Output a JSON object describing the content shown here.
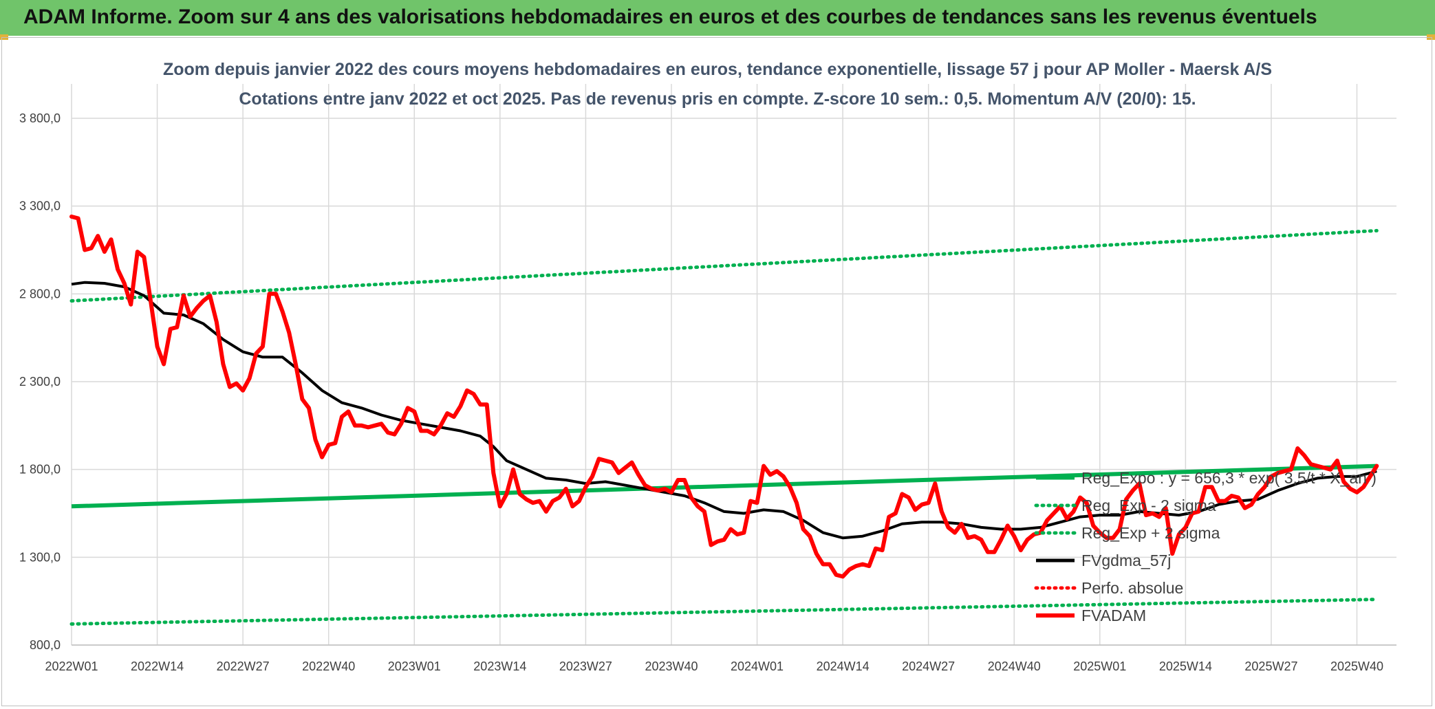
{
  "header": {
    "title": "ADAM Informe. Zoom sur 4 ans des valorisations hebdomadaires en euros et des courbes de tendances sans les revenus éventuels",
    "background": "#70c46a"
  },
  "chart_data": {
    "type": "line",
    "title": "Zoom depuis janvier 2022 des cours moyens hebdomadaires en euros, tendance exponentielle, lissage 57 j pour AP Moller - Maersk A/S",
    "subtitle": "Cotations entre janv 2022 et oct 2025. Pas de revenus pris en compte. Z-score 10 sem.: 0,5. Momentum A/V (20/0): 15.",
    "xlabel": "",
    "ylabel": "",
    "x_tick_labels": [
      "2022W01",
      "2022W14",
      "2022W27",
      "2022W40",
      "2023W01",
      "2023W14",
      "2023W27",
      "2023W40",
      "2024W01",
      "2024W14",
      "2024W27",
      "2024W40",
      "2025W01",
      "2025W14",
      "2025W27",
      "2025W40"
    ],
    "y_tick_labels": [
      "800,0",
      "1 300,0",
      "1 800,0",
      "2 300,0",
      "2 800,0",
      "3 300,0",
      "3 800,0"
    ],
    "ylim": [
      800,
      3800
    ],
    "x_range_weeks": [
      0,
      201
    ],
    "grid": true,
    "legend_position": "right",
    "legend": [
      {
        "name": "Reg_Expo : y = 656,3 * exp( 3,5/t * X_an )",
        "style": "solid",
        "color": "#00b050"
      },
      {
        "name": "Reg_Exp - 2 sigma",
        "style": "dotted",
        "color": "#00b050"
      },
      {
        "name": "Reg_Exp + 2 sigma",
        "style": "dotted",
        "color": "#00b050"
      },
      {
        "name": "FVgdma_57j",
        "style": "solid",
        "color": "#000000"
      },
      {
        "name": "Perfo. absolue",
        "style": "dotted",
        "color": "#ff0000"
      },
      {
        "name": "FVADAM",
        "style": "solid",
        "color": "#ff0000"
      }
    ],
    "series": [
      {
        "name": "FVADAM",
        "color": "#ff0000",
        "points": [
          [
            0,
            3240
          ],
          [
            1,
            3230
          ],
          [
            2,
            3050
          ],
          [
            3,
            3060
          ],
          [
            4,
            3130
          ],
          [
            5,
            3040
          ],
          [
            6,
            3110
          ],
          [
            7,
            2940
          ],
          [
            8,
            2860
          ],
          [
            9,
            2740
          ],
          [
            10,
            3040
          ],
          [
            11,
            3010
          ],
          [
            12,
            2760
          ],
          [
            13,
            2500
          ],
          [
            14,
            2400
          ],
          [
            15,
            2600
          ],
          [
            16,
            2610
          ],
          [
            17,
            2790
          ],
          [
            18,
            2670
          ],
          [
            19,
            2720
          ],
          [
            20,
            2760
          ],
          [
            21,
            2790
          ],
          [
            22,
            2640
          ],
          [
            23,
            2400
          ],
          [
            24,
            2270
          ],
          [
            25,
            2290
          ],
          [
            26,
            2250
          ],
          [
            27,
            2320
          ],
          [
            28,
            2460
          ],
          [
            29,
            2500
          ],
          [
            30,
            2800
          ],
          [
            31,
            2800
          ],
          [
            32,
            2700
          ],
          [
            33,
            2580
          ],
          [
            34,
            2400
          ],
          [
            35,
            2200
          ],
          [
            36,
            2150
          ],
          [
            37,
            1970
          ],
          [
            38,
            1870
          ],
          [
            39,
            1940
          ],
          [
            40,
            1950
          ],
          [
            41,
            2100
          ],
          [
            42,
            2130
          ],
          [
            43,
            2050
          ],
          [
            44,
            2050
          ],
          [
            45,
            2040
          ],
          [
            46,
            2050
          ],
          [
            47,
            2060
          ],
          [
            48,
            2010
          ],
          [
            49,
            2000
          ],
          [
            50,
            2060
          ],
          [
            51,
            2150
          ],
          [
            52,
            2130
          ],
          [
            53,
            2020
          ],
          [
            54,
            2020
          ],
          [
            55,
            2000
          ],
          [
            56,
            2050
          ],
          [
            57,
            2120
          ],
          [
            58,
            2100
          ],
          [
            59,
            2160
          ],
          [
            60,
            2250
          ],
          [
            61,
            2230
          ],
          [
            62,
            2170
          ],
          [
            63,
            2170
          ],
          [
            64,
            1780
          ],
          [
            65,
            1590
          ],
          [
            66,
            1660
          ],
          [
            67,
            1800
          ],
          [
            68,
            1660
          ],
          [
            69,
            1630
          ],
          [
            70,
            1610
          ],
          [
            71,
            1620
          ],
          [
            72,
            1560
          ],
          [
            73,
            1620
          ],
          [
            74,
            1640
          ],
          [
            75,
            1690
          ],
          [
            76,
            1590
          ],
          [
            77,
            1620
          ],
          [
            78,
            1700
          ],
          [
            79,
            1760
          ],
          [
            80,
            1860
          ],
          [
            81,
            1850
          ],
          [
            82,
            1840
          ],
          [
            83,
            1780
          ],
          [
            84,
            1810
          ],
          [
            85,
            1840
          ],
          [
            86,
            1770
          ],
          [
            87,
            1710
          ],
          [
            88,
            1690
          ],
          [
            89,
            1680
          ],
          [
            90,
            1690
          ],
          [
            91,
            1670
          ],
          [
            92,
            1740
          ],
          [
            93,
            1740
          ],
          [
            94,
            1640
          ],
          [
            95,
            1590
          ],
          [
            96,
            1560
          ],
          [
            97,
            1370
          ],
          [
            98,
            1390
          ],
          [
            99,
            1400
          ],
          [
            100,
            1460
          ],
          [
            101,
            1430
          ],
          [
            102,
            1440
          ],
          [
            103,
            1620
          ],
          [
            104,
            1610
          ],
          [
            105,
            1820
          ],
          [
            106,
            1770
          ],
          [
            107,
            1790
          ],
          [
            108,
            1760
          ],
          [
            109,
            1700
          ],
          [
            110,
            1610
          ],
          [
            111,
            1460
          ],
          [
            112,
            1420
          ],
          [
            113,
            1320
          ],
          [
            114,
            1260
          ],
          [
            115,
            1260
          ],
          [
            116,
            1200
          ],
          [
            117,
            1190
          ],
          [
            118,
            1230
          ],
          [
            119,
            1250
          ],
          [
            120,
            1260
          ],
          [
            121,
            1250
          ],
          [
            122,
            1350
          ],
          [
            123,
            1340
          ],
          [
            124,
            1530
          ],
          [
            125,
            1550
          ],
          [
            126,
            1660
          ],
          [
            127,
            1640
          ],
          [
            128,
            1570
          ],
          [
            129,
            1600
          ],
          [
            130,
            1610
          ],
          [
            131,
            1720
          ],
          [
            132,
            1560
          ],
          [
            133,
            1470
          ],
          [
            134,
            1440
          ],
          [
            135,
            1490
          ],
          [
            136,
            1410
          ],
          [
            137,
            1420
          ],
          [
            138,
            1400
          ],
          [
            139,
            1330
          ],
          [
            140,
            1330
          ],
          [
            141,
            1400
          ],
          [
            142,
            1480
          ],
          [
            143,
            1420
          ],
          [
            144,
            1340
          ],
          [
            145,
            1400
          ],
          [
            146,
            1430
          ],
          [
            147,
            1440
          ],
          [
            148,
            1510
          ],
          [
            149,
            1550
          ],
          [
            150,
            1590
          ],
          [
            151,
            1520
          ],
          [
            152,
            1560
          ],
          [
            153,
            1640
          ],
          [
            154,
            1610
          ],
          [
            155,
            1480
          ],
          [
            156,
            1440
          ],
          [
            157,
            1410
          ],
          [
            158,
            1410
          ],
          [
            159,
            1460
          ],
          [
            160,
            1630
          ],
          [
            161,
            1680
          ],
          [
            162,
            1720
          ],
          [
            163,
            1540
          ],
          [
            164,
            1550
          ],
          [
            165,
            1530
          ],
          [
            166,
            1580
          ],
          [
            167,
            1320
          ],
          [
            168,
            1430
          ],
          [
            169,
            1470
          ],
          [
            170,
            1550
          ],
          [
            171,
            1560
          ],
          [
            172,
            1700
          ],
          [
            173,
            1700
          ],
          [
            174,
            1620
          ],
          [
            175,
            1620
          ],
          [
            176,
            1650
          ],
          [
            177,
            1640
          ],
          [
            178,
            1580
          ],
          [
            179,
            1600
          ],
          [
            180,
            1660
          ],
          [
            181,
            1700
          ],
          [
            182,
            1760
          ],
          [
            183,
            1780
          ],
          [
            184,
            1790
          ],
          [
            185,
            1800
          ],
          [
            186,
            1920
          ],
          [
            187,
            1880
          ],
          [
            188,
            1830
          ],
          [
            189,
            1820
          ],
          [
            190,
            1810
          ],
          [
            191,
            1800
          ],
          [
            192,
            1850
          ],
          [
            193,
            1730
          ],
          [
            194,
            1690
          ],
          [
            195,
            1670
          ],
          [
            196,
            1700
          ],
          [
            197,
            1760
          ],
          [
            198,
            1820
          ]
        ]
      },
      {
        "name": "FVgdma_57j",
        "color": "#000000",
        "points": [
          [
            0,
            2855
          ],
          [
            2,
            2865
          ],
          [
            5,
            2860
          ],
          [
            8,
            2840
          ],
          [
            11,
            2790
          ],
          [
            14,
            2690
          ],
          [
            17,
            2680
          ],
          [
            20,
            2630
          ],
          [
            23,
            2540
          ],
          [
            26,
            2470
          ],
          [
            29,
            2440
          ],
          [
            32,
            2440
          ],
          [
            35,
            2350
          ],
          [
            38,
            2250
          ],
          [
            41,
            2180
          ],
          [
            44,
            2150
          ],
          [
            47,
            2110
          ],
          [
            50,
            2080
          ],
          [
            53,
            2060
          ],
          [
            56,
            2040
          ],
          [
            59,
            2020
          ],
          [
            62,
            1990
          ],
          [
            64,
            1930
          ],
          [
            66,
            1850
          ],
          [
            69,
            1800
          ],
          [
            72,
            1750
          ],
          [
            75,
            1740
          ],
          [
            78,
            1720
          ],
          [
            81,
            1730
          ],
          [
            84,
            1710
          ],
          [
            87,
            1690
          ],
          [
            90,
            1670
          ],
          [
            93,
            1650
          ],
          [
            96,
            1610
          ],
          [
            99,
            1560
          ],
          [
            102,
            1550
          ],
          [
            105,
            1570
          ],
          [
            108,
            1560
          ],
          [
            111,
            1510
          ],
          [
            114,
            1440
          ],
          [
            117,
            1410
          ],
          [
            120,
            1420
          ],
          [
            123,
            1450
          ],
          [
            126,
            1490
          ],
          [
            129,
            1500
          ],
          [
            132,
            1500
          ],
          [
            135,
            1490
          ],
          [
            138,
            1470
          ],
          [
            141,
            1460
          ],
          [
            144,
            1460
          ],
          [
            147,
            1470
          ],
          [
            150,
            1500
          ],
          [
            153,
            1530
          ],
          [
            156,
            1540
          ],
          [
            159,
            1540
          ],
          [
            162,
            1560
          ],
          [
            165,
            1550
          ],
          [
            168,
            1540
          ],
          [
            171,
            1560
          ],
          [
            174,
            1600
          ],
          [
            177,
            1620
          ],
          [
            180,
            1630
          ],
          [
            183,
            1680
          ],
          [
            186,
            1720
          ],
          [
            189,
            1750
          ],
          [
            192,
            1760
          ],
          [
            195,
            1760
          ],
          [
            198,
            1790
          ]
        ]
      },
      {
        "name": "Reg_Expo : y = 656,3 * exp( 3,5/t * X_an )",
        "color": "#00b050",
        "points": [
          [
            0,
            1590
          ],
          [
            198,
            1820
          ]
        ]
      },
      {
        "name": "Reg_Exp + 2 sigma",
        "color": "#00b050",
        "points": [
          [
            0,
            2760
          ],
          [
            198,
            3160
          ]
        ]
      },
      {
        "name": "Reg_Exp - 2 sigma",
        "color": "#00b050",
        "points": [
          [
            0,
            920
          ],
          [
            198,
            1060
          ]
        ]
      }
    ]
  }
}
